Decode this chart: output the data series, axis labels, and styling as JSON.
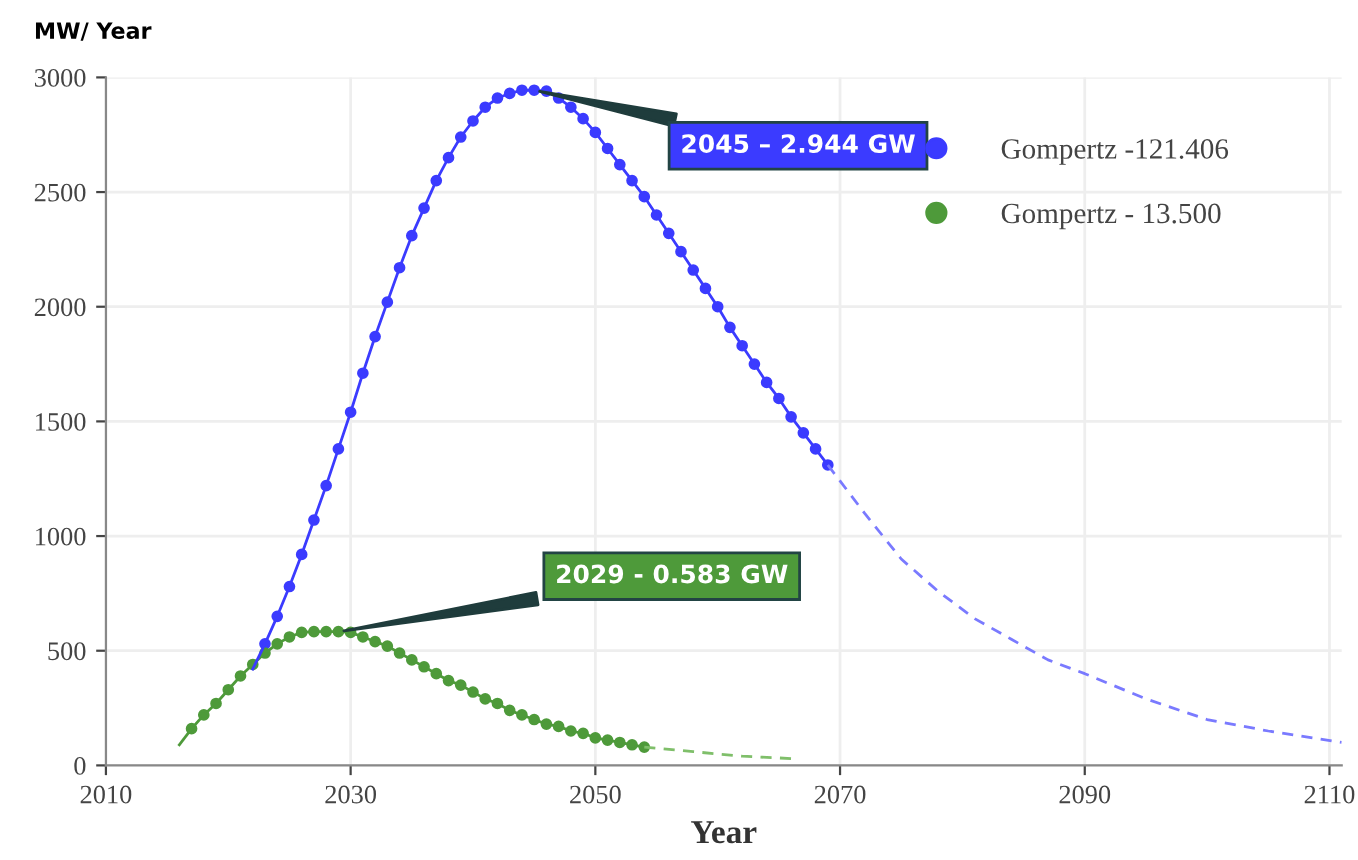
{
  "chart_data": {
    "type": "line",
    "ylabel": "MW/ Year",
    "xlabel": "Year",
    "xlim": [
      2010,
      2111
    ],
    "xticks": [
      2010,
      2030,
      2050,
      2070,
      2090,
      2110
    ],
    "ylim": [
      0,
      3000
    ],
    "yticks": [
      0,
      500,
      1000,
      1500,
      2000,
      2500,
      3000
    ],
    "grid": true,
    "legend": "top right",
    "series": [
      {
        "name": "Gompertz -121.406",
        "color": "#3b3bff",
        "marker": "circle",
        "line_style": "solid",
        "x": [
          2023,
          2024,
          2025,
          2026,
          2027,
          2028,
          2029,
          2030,
          2031,
          2032,
          2033,
          2034,
          2035,
          2036,
          2037,
          2038,
          2039,
          2040,
          2041,
          2042,
          2043,
          2044,
          2045,
          2046,
          2047,
          2048,
          2049,
          2050,
          2051,
          2052,
          2053,
          2054,
          2055,
          2056,
          2057,
          2058,
          2059,
          2060,
          2061,
          2062,
          2063,
          2064,
          2065,
          2066,
          2067,
          2068,
          2069
        ],
        "values": [
          530,
          650,
          780,
          920,
          1070,
          1220,
          1380,
          1540,
          1710,
          1870,
          2020,
          2170,
          2310,
          2430,
          2550,
          2650,
          2740,
          2810,
          2870,
          2910,
          2930,
          2944,
          2944,
          2940,
          2910,
          2870,
          2820,
          2760,
          2690,
          2620,
          2550,
          2480,
          2400,
          2320,
          2240,
          2160,
          2080,
          2000,
          1910,
          1830,
          1750,
          1670,
          1600,
          1520,
          1450,
          1380,
          1310
        ]
      },
      {
        "name": "Gompertz - 13.500",
        "color": "#4e9a3a",
        "marker": "circle",
        "line_style": "solid",
        "x": [
          2017,
          2018,
          2019,
          2020,
          2021,
          2022,
          2023,
          2024,
          2025,
          2026,
          2027,
          2028,
          2029,
          2030,
          2031,
          2032,
          2033,
          2034,
          2035,
          2036,
          2037,
          2038,
          2039,
          2040,
          2041,
          2042,
          2043,
          2044,
          2045,
          2046,
          2047,
          2048,
          2049,
          2050,
          2051,
          2052,
          2053,
          2054
        ],
        "values": [
          160,
          220,
          270,
          330,
          390,
          440,
          490,
          530,
          560,
          580,
          583,
          583,
          583,
          580,
          560,
          540,
          520,
          490,
          460,
          430,
          400,
          370,
          350,
          320,
          290,
          270,
          240,
          220,
          200,
          180,
          170,
          150,
          140,
          120,
          110,
          100,
          90,
          80
        ]
      },
      {
        "color": "#7a7aff",
        "marker": "none",
        "line_style": "dashed",
        "x": [
          2069,
          2072,
          2075,
          2078,
          2081,
          2084,
          2087,
          2090,
          2095,
          2100,
          2105,
          2111
        ],
        "values": [
          1310,
          1100,
          900,
          760,
          640,
          550,
          460,
          400,
          290,
          200,
          150,
          100
        ]
      },
      {
        "color": "#7fbf6a",
        "marker": "none",
        "line_style": "dashed",
        "x": [
          2054,
          2058,
          2062,
          2066
        ],
        "values": [
          80,
          60,
          40,
          30
        ]
      },
      {
        "color": "#3b3bff",
        "marker": "none",
        "line_style": "solid",
        "x": [
          2022,
          2023
        ],
        "values": [
          420,
          530
        ]
      },
      {
        "color": "#4e9a3a",
        "marker": "none",
        "line_style": "solid",
        "x": [
          2016,
          2017
        ],
        "values": [
          90,
          160
        ]
      }
    ],
    "annotations": [
      {
        "text": "2045 – 2.944 GW",
        "x": 2045,
        "y": 2944
      },
      {
        "text": "2029 - 0.583 GW",
        "x": 2029,
        "y": 583
      }
    ]
  }
}
